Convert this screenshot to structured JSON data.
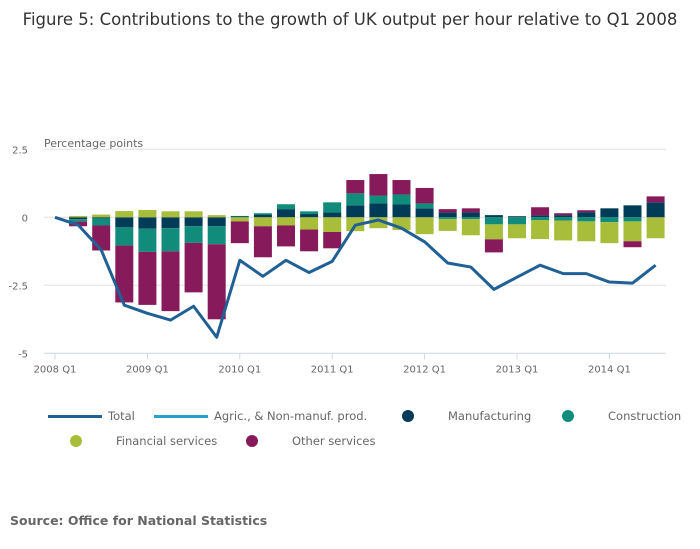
{
  "chart_data": {
    "type": "bar",
    "title": "Figure 5: Contributions to the growth of UK output per hour relative to Q1 2008",
    "ylabel": "Percentage points",
    "xlabel": "",
    "ylim": [
      -5,
      2.5
    ],
    "yticks": [
      2.5,
      0,
      -2.5,
      -5
    ],
    "ytick_labels": [
      "2.5",
      "0",
      "-2.5",
      "-5"
    ],
    "grid": true,
    "stacked": true,
    "categories": [
      "2008 Q1",
      "2008 Q2",
      "2008 Q3",
      "2008 Q4",
      "2009 Q1",
      "2009 Q2",
      "2009 Q3",
      "2009 Q4",
      "2010 Q1",
      "2010 Q2",
      "2010 Q3",
      "2010 Q4",
      "2011 Q1",
      "2011 Q2",
      "2011 Q3",
      "2011 Q4",
      "2012 Q1",
      "2012 Q2",
      "2012 Q3",
      "2012 Q4",
      "2013 Q1",
      "2013 Q2",
      "2013 Q3",
      "2013 Q4",
      "2014 Q1",
      "2014 Q2",
      "2014 Q3"
    ],
    "xtick_labels": [
      "2008 Q1",
      "2009 Q1",
      "2010 Q1",
      "2011 Q1",
      "2012 Q1",
      "2013 Q1",
      "2014 Q1"
    ],
    "series": [
      {
        "name": "Total",
        "kind": "line",
        "color": "#206095",
        "values": [
          0,
          -0.28,
          -1.2,
          -3.23,
          -3.53,
          -3.78,
          -3.27,
          -4.41,
          -1.58,
          -2.17,
          -1.58,
          -2.03,
          -1.62,
          -0.29,
          -0.1,
          -0.4,
          -0.9,
          -1.68,
          -1.83,
          -2.65,
          -2.2,
          -1.76,
          -2.07,
          -2.07,
          -2.38,
          -2.42,
          -1.76
        ]
      },
      {
        "name": "Agric., & Non-manuf. prod.",
        "kind": "bar",
        "color": "#27a0cc",
        "values": [
          null,
          0,
          0,
          0,
          0,
          0,
          0,
          0,
          0,
          0,
          0,
          0,
          0,
          0,
          0,
          0,
          0,
          0,
          0,
          0,
          0,
          0,
          0,
          0,
          0,
          0,
          0
        ]
      },
      {
        "name": "Manufacturing",
        "kind": "bar",
        "color": "#003c57",
        "values": [
          null,
          -0.07,
          -0.04,
          -0.37,
          -0.42,
          -0.4,
          -0.33,
          -0.33,
          0.03,
          0.1,
          0.3,
          0.12,
          0.18,
          0.44,
          0.51,
          0.47,
          0.33,
          0.18,
          0.18,
          0.08,
          0.04,
          0.07,
          0.08,
          0.19,
          0.33,
          0.44,
          0.55
        ]
      },
      {
        "name": "Construction",
        "kind": "bar",
        "color": "#118c7b",
        "values": [
          null,
          -0.09,
          -0.26,
          -0.67,
          -0.85,
          -0.85,
          -0.61,
          -0.66,
          0.02,
          0.05,
          0.18,
          0.1,
          0.37,
          0.44,
          0.29,
          0.37,
          0.18,
          -0.06,
          -0.07,
          -0.26,
          -0.26,
          -0.1,
          -0.12,
          -0.15,
          -0.18,
          -0.15,
          0
        ]
      },
      {
        "name": "Financial services",
        "kind": "bar",
        "color": "#a8bd3a",
        "values": [
          null,
          0.05,
          0.1,
          0.23,
          0.27,
          0.22,
          0.22,
          0.08,
          -0.15,
          -0.33,
          -0.3,
          -0.45,
          -0.54,
          -0.51,
          -0.4,
          -0.47,
          -0.62,
          -0.44,
          -0.59,
          -0.55,
          -0.51,
          -0.7,
          -0.73,
          -0.73,
          -0.77,
          -0.73,
          -0.77
        ]
      },
      {
        "name": "Other services",
        "kind": "bar",
        "color": "#871a5b",
        "values": [
          null,
          -0.17,
          -0.92,
          -2.09,
          -1.95,
          -2.2,
          -1.82,
          -2.76,
          -0.8,
          -1.14,
          -0.77,
          -0.8,
          -0.6,
          0.49,
          0.79,
          0.53,
          0.57,
          0.12,
          0.15,
          -0.48,
          0,
          0.3,
          0.07,
          0.07,
          0,
          -0.22,
          0.22
        ]
      }
    ],
    "legend_position": "bottom"
  },
  "legend": {
    "items": [
      {
        "label": "Total",
        "kind": "line",
        "color": "#206095"
      },
      {
        "label": "Agric., & Non-manuf. prod.",
        "kind": "line",
        "color": "#27a0cc"
      },
      {
        "label": "Manufacturing",
        "kind": "dot",
        "color": "#003c57"
      },
      {
        "label": "Construction",
        "kind": "dot",
        "color": "#118c7b"
      },
      {
        "label": "Financial services",
        "kind": "dot",
        "color": "#a8bd3a"
      },
      {
        "label": "Other services",
        "kind": "dot",
        "color": "#871a5b"
      }
    ]
  },
  "source": "Source: Office for National Statistics"
}
